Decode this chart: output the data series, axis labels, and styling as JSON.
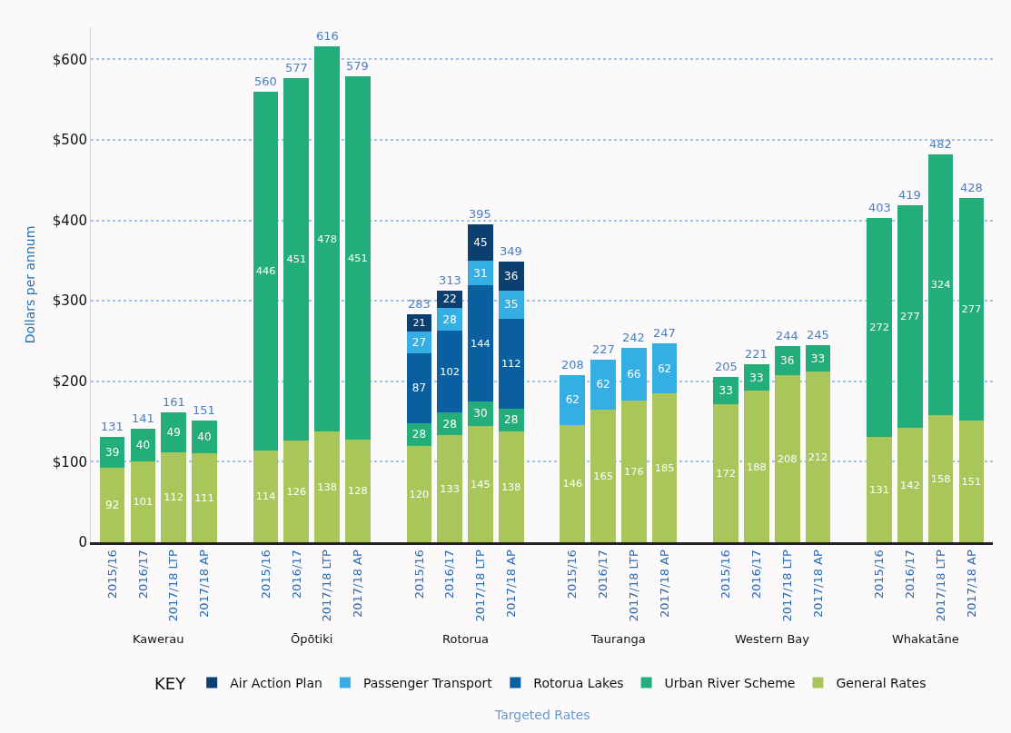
{
  "chart_data": {
    "type": "bar",
    "stacked": true,
    "ylabel": "Dollars per annum",
    "categories": [
      "2015/16",
      "2016/17",
      "2017/18 LTP",
      "2017/18 AP",
      null,
      "2015/16",
      "2016/17",
      "2017/18 LTP",
      "2017/18 AP",
      null,
      "2015/16",
      "2016/17",
      "2017/18 LTP",
      "2017/18 AP",
      null,
      "2015/16",
      "2016/17",
      "2017/18 LTP",
      "2017/18 AP",
      null,
      "2015/16",
      "2016/17",
      "2017/18 LTP",
      "2017/18 AP",
      null,
      "2015/16",
      "2016/17",
      "2017/18 LTP",
      "2017/18 AP"
    ],
    "series": [
      {
        "name": "General Rates",
        "color": "#a8c65a",
        "values": [
          92,
          101,
          112,
          111,
          null,
          114,
          126,
          138,
          128,
          null,
          120,
          133,
          145,
          138,
          null,
          146,
          165,
          176,
          185,
          null,
          172,
          188,
          208,
          212,
          null,
          131,
          142,
          158,
          151
        ]
      },
      {
        "name": "Urban River Scheme",
        "color": "#22ad7a",
        "values": [
          39,
          40,
          49,
          40,
          null,
          446,
          451,
          478,
          451,
          null,
          28,
          28,
          30,
          28,
          null,
          null,
          null,
          null,
          null,
          null,
          33,
          33,
          36,
          33,
          null,
          272,
          277,
          324,
          277
        ]
      },
      {
        "name": "Rotorua Lakes",
        "color": "#0a5fa0",
        "values": [
          null,
          null,
          null,
          null,
          null,
          null,
          null,
          null,
          null,
          null,
          87,
          102,
          144,
          112,
          null,
          null,
          null,
          null,
          null,
          null,
          null,
          null,
          null,
          null,
          null,
          null,
          null,
          null,
          null
        ]
      },
      {
        "name": "Passenger Transport",
        "color": "#35aee3",
        "values": [
          null,
          null,
          null,
          null,
          null,
          null,
          null,
          null,
          null,
          null,
          27,
          28,
          31,
          35,
          null,
          62,
          62,
          66,
          62,
          null,
          null,
          null,
          null,
          null,
          null,
          null,
          null,
          null,
          null
        ]
      },
      {
        "name": "Air Action Plan",
        "color": "#0b3f6f",
        "values": [
          null,
          null,
          null,
          null,
          null,
          null,
          null,
          null,
          null,
          null,
          21,
          22,
          45,
          36,
          null,
          null,
          null,
          null,
          null,
          null,
          null,
          null,
          null,
          null,
          null,
          null,
          null,
          null,
          null
        ]
      }
    ],
    "totals": [
      "131",
      "141",
      "161",
      "151",
      null,
      "560",
      "577",
      "616",
      "579",
      null,
      "283",
      "313",
      "395",
      "349",
      null,
      "208",
      "227",
      "242",
      "247",
      null,
      "205",
      "221",
      "244",
      "245",
      null,
      "403",
      "419",
      "482",
      "428"
    ],
    "data_labels": true,
    "ylim": [
      0,
      640
    ],
    "yticks": [
      0,
      {
        "value": 100,
        "label": "$100"
      },
      {
        "value": 200,
        "label": "$200"
      },
      {
        "value": 300,
        "label": "$300"
      },
      {
        "value": 400,
        "label": "$400"
      },
      {
        "value": 500,
        "label": "$500"
      },
      {
        "value": 600,
        "label": "$600"
      }
    ],
    "grid": "y",
    "legend": "bottom",
    "legend_title": "KEY",
    "annotations": [
      "Kawerau",
      "Ōpōtiki",
      "Rotorua",
      "Tauranga",
      "Western Bay",
      "Whakatāne",
      "Targeted Rates"
    ]
  }
}
